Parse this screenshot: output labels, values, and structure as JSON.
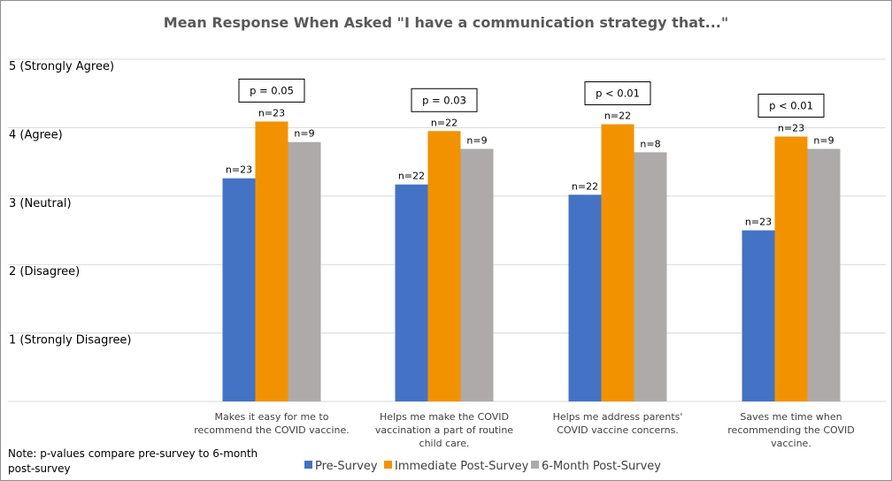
{
  "chart_data": {
    "type": "bar",
    "title": "Mean Response When Asked \"I have a communication strategy that...\"",
    "ylim": [
      0,
      5
    ],
    "y_ticks": [
      {
        "value": 1,
        "label": "1 (Strongly Disagree)"
      },
      {
        "value": 2,
        "label": "2 (Disagree)"
      },
      {
        "value": 3,
        "label": "3 (Neutral)"
      },
      {
        "value": 4,
        "label": "4  (Agree)"
      },
      {
        "value": 5,
        "label": "5 (Strongly Agree)"
      }
    ],
    "grid": true,
    "legend_position": "bottom",
    "categories": [
      [
        "Makes it easy for me to",
        "recommend the COVID vaccine."
      ],
      [
        "Helps me make the COVID",
        "vaccination a part of routine",
        "child care."
      ],
      [
        "Helps me address parents'",
        "COVID vaccine concerns."
      ],
      [
        "Saves me time when",
        "recommending the COVID",
        "vaccine."
      ]
    ],
    "series": [
      {
        "name": "Pre-Survey",
        "color": "#4472c4",
        "values": [
          3.26,
          3.17,
          3.02,
          2.5
        ],
        "n_labels": [
          "n=23",
          "n=22",
          "n=22",
          "n=23"
        ]
      },
      {
        "name": "Immediate Post-Survey",
        "color": "#f39200",
        "values": [
          4.09,
          3.95,
          4.05,
          3.87
        ],
        "n_labels": [
          "n=23",
          "n=22",
          "n=22",
          "n=23"
        ]
      },
      {
        "name": "6-Month Post-Survey",
        "color": "#aeaaaa",
        "values": [
          3.79,
          3.69,
          3.64,
          3.69
        ],
        "n_labels": [
          "n=9",
          "n=9",
          "n=8",
          "n=9"
        ]
      }
    ],
    "p_values": [
      "p = 0.05",
      "p = 0.03",
      "p < 0.01",
      "p < 0.01"
    ],
    "note": [
      "Note: p-values compare pre-survey to 6-month",
      "post-survey"
    ]
  }
}
